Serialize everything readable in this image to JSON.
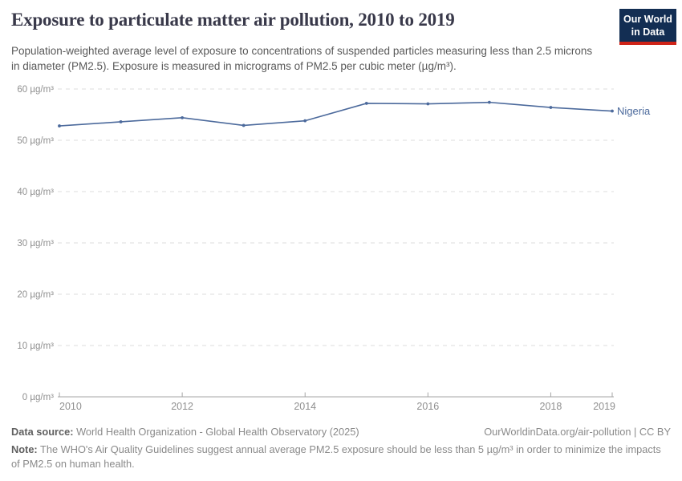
{
  "header": {
    "title": "Exposure to particulate matter air pollution, 2010 to 2019",
    "subtitle": "Population-weighted average level of exposure to concentrations of suspended particles measuring less than 2.5 microns in diameter (PM2.5). Exposure is measured in micrograms of PM2.5 per cubic meter (µg/m³).",
    "logo": {
      "line1": "Our World",
      "line2": "in Data",
      "bg_color": "#132e53",
      "bar_color": "#cf2318",
      "text_color": "#ffffff"
    }
  },
  "chart_data": {
    "type": "line",
    "title": "Exposure to particulate matter air pollution, 2010 to 2019",
    "x": [
      2010,
      2011,
      2012,
      2013,
      2014,
      2015,
      2016,
      2017,
      2018,
      2019
    ],
    "series": [
      {
        "name": "Nigeria",
        "color": "#4C6A9C",
        "values": [
          52.8,
          53.6,
          54.4,
          52.9,
          53.8,
          57.2,
          57.1,
          57.4,
          56.4,
          55.7
        ]
      }
    ],
    "ylim": [
      0,
      60
    ],
    "ytick_step": 10,
    "y_unit": "µg/m³",
    "y_tick_labels": [
      "0 µg/m³",
      "10 µg/m³",
      "20 µg/m³",
      "30 µg/m³",
      "40 µg/m³",
      "50 µg/m³",
      "60 µg/m³"
    ],
    "x_tick_labels": [
      "2010",
      "2012",
      "2014",
      "2016",
      "2018",
      "2019"
    ],
    "grid": "horizontal-dashed",
    "legend_position": "line-end-label",
    "theme": {
      "grid_color": "#dcdcdc",
      "axis_color": "#a5a5a5",
      "tick_text_color": "#8f8f8f"
    }
  },
  "footer": {
    "datasource_label": "Data source:",
    "datasource_text": " World Health Organization - Global Health Observatory (2025)",
    "link_text": "OurWorldinData.org/air-pollution | CC BY",
    "note_label": "Note:",
    "note_text": " The WHO's Air Quality Guidelines suggest annual average PM2.5 exposure should be less than 5 µg/m³ in order to minimize the impacts of PM2.5 on human health."
  }
}
